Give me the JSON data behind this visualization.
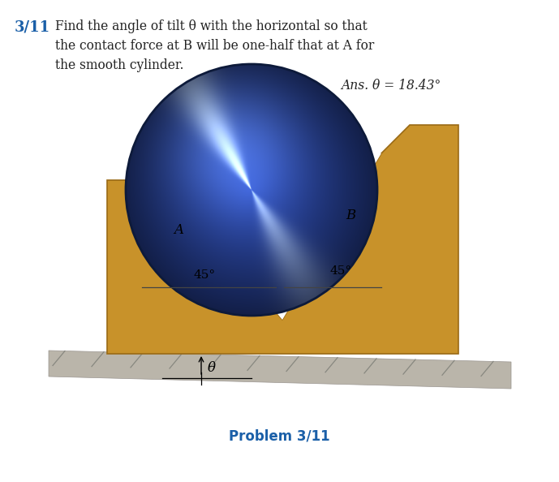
{
  "title_number": "3/11",
  "title_text": "Find the angle of tilt θ with the horizontal so that\nthe contact force at B will be one-half that at A for\nthe smooth cylinder.",
  "ans_text": "Ans. θ = 18.43°",
  "problem_label": "Problem 3/11",
  "label_A": "A",
  "label_B": "B",
  "label_45_left": "45°",
  "label_45_right": "45°",
  "label_theta": "θ",
  "bg_color": "#ffffff",
  "bracket_color": "#c8922a",
  "bracket_edge_color": "#9a6a15",
  "ground_top_color": "#c8bfb0",
  "ground_bot_color": "#a09890",
  "cylinder_base_blue": [
    0.2,
    0.35,
    0.75
  ],
  "title_number_color": "#1a5fa8",
  "problem_label_color": "#1a5fa8",
  "text_color": "#222222"
}
